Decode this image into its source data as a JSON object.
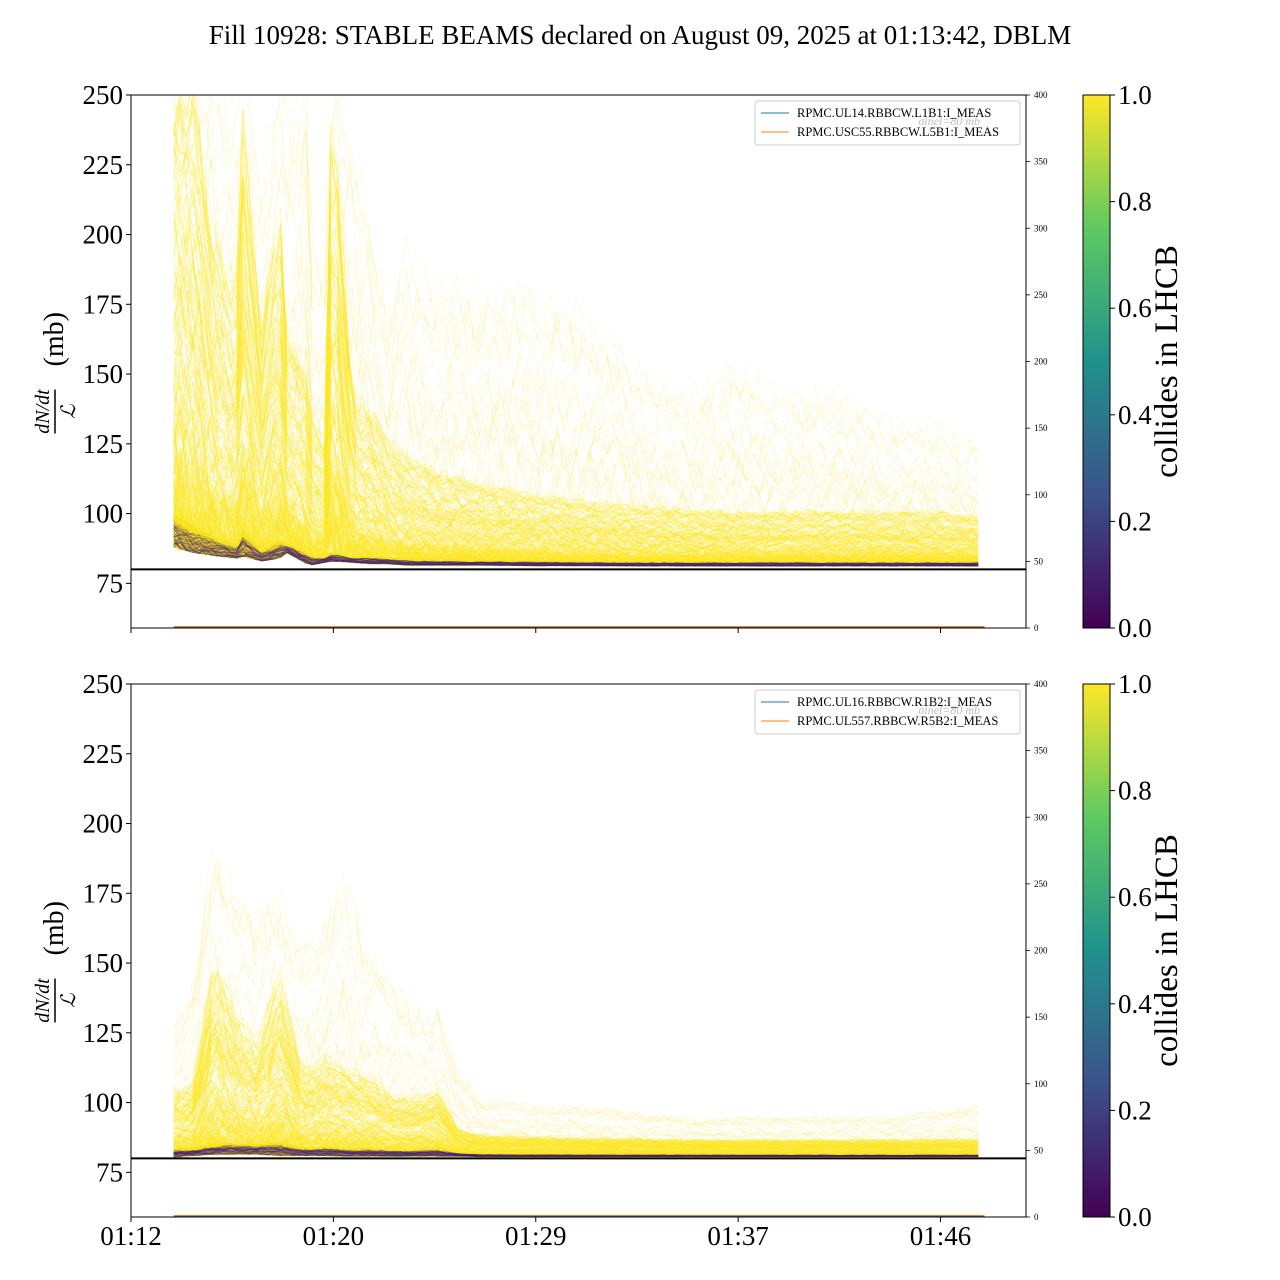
{
  "chart_data": {
    "type": "line",
    "title": "Fill 10928: STABLE BEAMS declared on August 09, 2025 at 01:13:42, DBLM",
    "x_ticks": [
      "01:12",
      "01:20",
      "01:29",
      "01:37",
      "01:46"
    ],
    "x_tick_minutes": [
      0,
      8.05,
      16.1,
      24.15,
      32.2
    ],
    "x_range_minutes": [
      0,
      35.6
    ],
    "x_data_range_minutes": [
      1.7,
      33.8
    ],
    "y_label": "(mb)",
    "y_label_fraction": {
      "numerator": "dN/dt",
      "denominator": "ℒ"
    },
    "y_range": [
      59,
      250
    ],
    "y_ticks": [
      75,
      100,
      125,
      150,
      175,
      200,
      225,
      250
    ],
    "right_y_range": [
      0,
      400
    ],
    "right_y_ticks": [
      0,
      50,
      100,
      150,
      200,
      250,
      300,
      350,
      400
    ],
    "reference_line": {
      "value": 80,
      "color": "#000000"
    },
    "reference_label": "σinel=80 mb",
    "colorbar": {
      "label": "collides in LHCB",
      "range": [
        0,
        1
      ],
      "ticks": [
        "0.0",
        "0.2",
        "0.4",
        "0.6",
        "0.8",
        "1.0"
      ],
      "colormap": "viridis",
      "stops": [
        "#440154",
        "#3b528b",
        "#21918c",
        "#5ec962",
        "#fde725"
      ]
    },
    "panels": [
      {
        "legend": [
          {
            "name": "RPMC.UL14.RBBCW.L1B1:I_MEAS",
            "color": "#1f77b4"
          },
          {
            "name": "RPMC.USC55.RBBCW.L5B1:I_MEAS",
            "color": "#ff7f0e"
          }
        ],
        "band_envelope": {
          "minutes": [
            1.7,
            2.5,
            3.3,
            4.2,
            4.3,
            5.2,
            5.9,
            6.2,
            7.0,
            7.1,
            7.7,
            8.0,
            8.8,
            9.5,
            10.2,
            11.0,
            12.0,
            14.0,
            16.0,
            18.0,
            20.0,
            22.0,
            24.0,
            26.0,
            28.0,
            30.0,
            32.0,
            33.8
          ],
          "low": [
            88,
            86,
            85,
            84,
            85,
            83,
            84,
            86,
            82,
            81.5,
            82.5,
            83,
            82.5,
            82,
            82,
            81.5,
            81.5,
            81.5,
            81.3,
            81.3,
            81.2,
            81.2,
            81.2,
            81.2,
            81.2,
            81.2,
            81.2,
            81.2
          ],
          "mid": [
            112,
            104,
            98,
            93,
            105,
            90,
            96,
            92,
            90,
            88,
            86,
            89,
            86,
            87,
            86,
            85.5,
            85,
            84.5,
            84.5,
            84.3,
            84.2,
            84.2,
            84.2,
            84.3,
            84.2,
            84.2,
            84.2,
            84.2
          ],
          "high": [
            250,
            250,
            195,
            180,
            250,
            165,
            210,
            160,
            150,
            132,
            125,
            250,
            140,
            136,
            125,
            120,
            115,
            110,
            106,
            104,
            102,
            101,
            100,
            100,
            100,
            100,
            100,
            98
          ],
          "outer": [
            250,
            250,
            250,
            230,
            250,
            210,
            250,
            230,
            250,
            200,
            190,
            250,
            230,
            200,
            170,
            190,
            175,
            175,
            175,
            168,
            150,
            140,
            150,
            140,
            140,
            130,
            130,
            125
          ]
        }
      },
      {
        "legend": [
          {
            "name": "RPMC.UL16.RBBCW.R1B2:I_MEAS",
            "color": "#1f77b4"
          },
          {
            "name": "RPMC.UL557.RBBCW.R5B2:I_MEAS",
            "color": "#ff7f0e"
          }
        ],
        "band_envelope": {
          "minutes": [
            1.7,
            2.5,
            3.3,
            4.2,
            5.0,
            5.9,
            6.8,
            7.7,
            8.5,
            9.5,
            10.5,
            11.2,
            12.2,
            13.0,
            14.0,
            16.0,
            18.0,
            20.0,
            22.0,
            24.0,
            26.0,
            28.0,
            30.0,
            32.0,
            33.8
          ],
          "low": [
            80.5,
            81,
            81.5,
            81.5,
            81.5,
            81,
            81,
            81,
            80.8,
            80.8,
            80.8,
            80.8,
            80.8,
            80.8,
            80.6,
            80.6,
            80.6,
            80.6,
            80.6,
            80.6,
            80.6,
            80.6,
            80.6,
            80.6,
            80.6
          ],
          "mid": [
            86,
            86,
            88,
            89,
            88,
            90,
            86,
            87,
            86,
            86,
            85,
            85,
            86,
            83,
            82.5,
            82.3,
            82.2,
            82.2,
            82.2,
            82.2,
            82.1,
            82.1,
            82.1,
            82.1,
            82.1
          ],
          "high": [
            104,
            106,
            150,
            130,
            120,
            145,
            112,
            115,
            112,
            108,
            102,
            101,
            104,
            90,
            88,
            87.5,
            87,
            87,
            86.5,
            86.5,
            86.5,
            86.5,
            86.5,
            86.5,
            86.5
          ],
          "outer": [
            125,
            140,
            190,
            170,
            160,
            168,
            150,
            160,
            175,
            150,
            140,
            130,
            130,
            110,
            100,
            98,
            98,
            96,
            94,
            94,
            94,
            94,
            94,
            96,
            98
          ]
        }
      }
    ]
  }
}
